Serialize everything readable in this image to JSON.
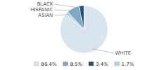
{
  "chart_data": {
    "type": "pie",
    "categories": [
      "WHITE",
      "ASIAN",
      "HISPANIC",
      "BLACK"
    ],
    "values": [
      86.4,
      1.7,
      8.5,
      3.4
    ],
    "colors": [
      "#d9e4ef",
      "#b8cfe0",
      "#7fa8c4",
      "#1f4e79"
    ],
    "legend": "bottom",
    "legend_entries": [
      {
        "value": 86.4,
        "label": "86.4%",
        "color": "#d9e4ef"
      },
      {
        "value": 8.5,
        "label": "8.5%",
        "color": "#7fa8c4"
      },
      {
        "value": 3.4,
        "label": "3.4%",
        "color": "#1f4e79"
      },
      {
        "value": 1.7,
        "label": "1.7%",
        "color": "#b8cfe0"
      }
    ]
  }
}
